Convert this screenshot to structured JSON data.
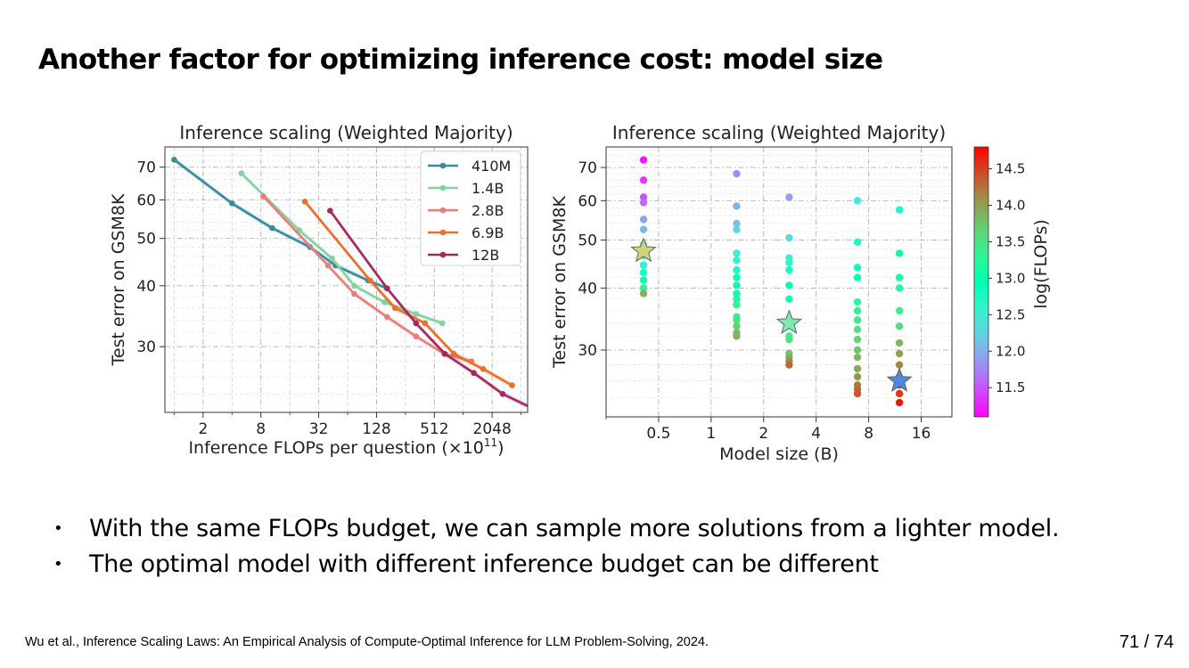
{
  "slide": {
    "title": "Another factor for optimizing inference cost: model size",
    "bullets": [
      "With the same FLOPs budget, we can sample more solutions from a lighter model.",
      "The optimal model with different inference budget can be different"
    ],
    "bullet_glyph": "•",
    "citation": "Wu et al., Inference Scaling Laws: An Empirical Analysis of Compute-Optimal Inference for LLM Problem-Solving, 2024.",
    "page_number": "71 / 74"
  },
  "chart_data": [
    {
      "type": "line",
      "title": "Inference scaling (Weighted Majority)",
      "xlabel": "Inference FLOPs per question (×10",
      "xlabel_exponent": "11",
      "xlabel_suffix": ")",
      "ylabel": "Test error on GSM8K",
      "xscale": "log2",
      "yscale": "log",
      "xlim": [
        0.8,
        4800
      ],
      "ylim": [
        22,
        77
      ],
      "xticks": [
        2,
        8,
        32,
        128,
        512,
        2048
      ],
      "xtick_labels": [
        "2",
        "8",
        "32",
        "128",
        "512",
        "2048"
      ],
      "yticks": [
        30,
        40,
        50,
        60,
        70
      ],
      "ytick_labels": [
        "30",
        "40",
        "50",
        "60",
        "70"
      ],
      "grid": true,
      "legend_position": "top-right",
      "series": [
        {
          "name": "410M",
          "color": "#3a8a9c",
          "points": [
            [
              1.0,
              72.5
            ],
            [
              4.0,
              59.0
            ],
            [
              10.5,
              52.5
            ],
            [
              26.0,
              48.0
            ],
            [
              48.0,
              44.0
            ],
            [
              105.0,
              41.0
            ],
            [
              165.0,
              39.5
            ]
          ]
        },
        {
          "name": "1.4B",
          "color": "#86d0a2",
          "points": [
            [
              5.0,
              68.0
            ],
            [
              20.0,
              52.0
            ],
            [
              44.0,
              45.5
            ],
            [
              75.0,
              40.0
            ],
            [
              155.0,
              37.0
            ],
            [
              330.0,
              35.0
            ],
            [
              620.0,
              33.5
            ]
          ]
        },
        {
          "name": "2.8B",
          "color": "#e87e7a",
          "points": [
            [
              8.5,
              61.0
            ],
            [
              40.0,
              44.0
            ],
            [
              75.0,
              38.5
            ],
            [
              165.0,
              34.5
            ],
            [
              330.0,
              31.5
            ],
            [
              650.0,
              29.0
            ],
            [
              1250.0,
              28.0
            ]
          ]
        },
        {
          "name": "6.9B",
          "color": "#e8702a",
          "points": [
            [
              23.0,
              59.5
            ],
            [
              110.0,
              41.0
            ],
            [
              200.0,
              36.0
            ],
            [
              410.0,
              33.5
            ],
            [
              820.0,
              29.0
            ],
            [
              1650.0,
              27.0
            ],
            [
              3300.0,
              25.0
            ]
          ]
        },
        {
          "name": "12B",
          "color": "#a7285f",
          "points": [
            [
              42.0,
              57.0
            ],
            [
              165.0,
              39.5
            ],
            [
              330.0,
              33.5
            ],
            [
              660.0,
              29.0
            ],
            [
              1320.0,
              26.5
            ],
            [
              2640.0,
              24.0
            ],
            [
              5200.0,
              22.5
            ]
          ]
        }
      ]
    },
    {
      "type": "scatter",
      "title": "Inference scaling (Weighted Majority)",
      "xlabel": "Model size (B)",
      "ylabel": "Test error on GSM8K",
      "colorbar_label": "log(FLOPs)",
      "colormap": "rainbow",
      "xscale": "log2",
      "yscale": "log",
      "xlim": [
        0.25,
        24
      ],
      "ylim": [
        22,
        77
      ],
      "xticks": [
        0.5,
        1,
        2,
        4,
        8,
        16
      ],
      "xtick_labels": [
        "0.5",
        "1",
        "2",
        "4",
        "8",
        "16"
      ],
      "yticks": [
        30,
        40,
        50,
        60,
        70
      ],
      "ytick_labels": [
        "30",
        "40",
        "50",
        "60",
        "70"
      ],
      "colorbar_range": [
        11.1,
        14.8
      ],
      "colorbar_ticks": [
        11.5,
        12.0,
        12.5,
        13.0,
        13.5,
        14.0,
        14.5
      ],
      "colorbar_tick_labels": [
        "11.5",
        "12.0",
        "12.5",
        "13.0",
        "13.5",
        "14.0",
        "14.5"
      ],
      "grid": true,
      "groups": [
        {
          "x": 0.41,
          "points": [
            [
              72.5,
              11.2
            ],
            [
              66.0,
              11.35
            ],
            [
              61.0,
              11.5
            ],
            [
              59.5,
              11.6
            ],
            [
              55.0,
              11.9
            ],
            [
              52.5,
              12.05
            ],
            [
              49.0,
              12.2
            ],
            [
              46.5,
              12.4
            ],
            [
              44.5,
              12.6
            ],
            [
              43.0,
              12.8
            ],
            [
              41.5,
              13.0
            ],
            [
              40.0,
              13.3
            ],
            [
              39.0,
              13.9
            ]
          ]
        },
        {
          "x": 1.4,
          "points": [
            [
              68.0,
              11.8
            ],
            [
              58.5,
              12.0
            ],
            [
              54.0,
              12.1
            ],
            [
              52.5,
              12.25
            ],
            [
              47.0,
              12.45
            ],
            [
              45.5,
              12.6
            ],
            [
              43.5,
              12.75
            ],
            [
              42.0,
              12.85
            ],
            [
              40.5,
              12.95
            ],
            [
              39.0,
              13.05
            ],
            [
              38.0,
              13.15
            ],
            [
              37.0,
              13.3
            ],
            [
              35.0,
              13.45
            ],
            [
              34.5,
              13.55
            ],
            [
              33.5,
              13.65
            ],
            [
              32.5,
              13.8
            ],
            [
              32.0,
              13.9
            ]
          ]
        },
        {
          "x": 2.8,
          "points": [
            [
              61.0,
              11.9
            ],
            [
              50.5,
              12.3
            ],
            [
              46.0,
              12.5
            ],
            [
              45.0,
              12.6
            ],
            [
              43.5,
              12.8
            ],
            [
              40.5,
              12.95
            ],
            [
              38.0,
              13.1
            ],
            [
              32.0,
              13.4
            ],
            [
              31.5,
              13.5
            ],
            [
              29.5,
              13.75
            ],
            [
              29.0,
              13.9
            ],
            [
              28.5,
              14.1
            ],
            [
              28.0,
              14.3
            ]
          ]
        },
        {
          "x": 6.9,
          "points": [
            [
              60.0,
              12.4
            ],
            [
              49.5,
              12.7
            ],
            [
              44.0,
              12.85
            ],
            [
              42.0,
              12.95
            ],
            [
              37.5,
              13.2
            ],
            [
              36.0,
              13.35
            ],
            [
              34.5,
              13.45
            ],
            [
              33.0,
              13.55
            ],
            [
              31.5,
              13.65
            ],
            [
              30.0,
              13.75
            ],
            [
              29.0,
              13.85
            ],
            [
              27.5,
              13.95
            ],
            [
              26.5,
              14.05
            ],
            [
              25.5,
              14.2
            ],
            [
              25.0,
              14.3
            ],
            [
              24.5,
              14.4
            ]
          ]
        },
        {
          "x": 12,
          "points": [
            [
              57.5,
              12.75
            ],
            [
              47.0,
              12.95
            ],
            [
              42.0,
              13.05
            ],
            [
              40.0,
              13.2
            ],
            [
              36.0,
              13.4
            ],
            [
              33.5,
              13.6
            ],
            [
              31.0,
              13.85
            ],
            [
              29.5,
              14.0
            ],
            [
              28.0,
              14.15
            ],
            [
              26.5,
              14.3
            ],
            [
              25.5,
              14.45
            ],
            [
              24.5,
              14.55
            ],
            [
              23.5,
              14.7
            ]
          ]
        }
      ],
      "optimal_points": [
        {
          "x": 0.41,
          "y": 47.5,
          "color": "#d2d47a"
        },
        {
          "x": 2.8,
          "y": 34.0,
          "color": "#7fe8b0"
        },
        {
          "x": 12,
          "y": 26.0,
          "color": "#4f86e0"
        }
      ]
    }
  ]
}
